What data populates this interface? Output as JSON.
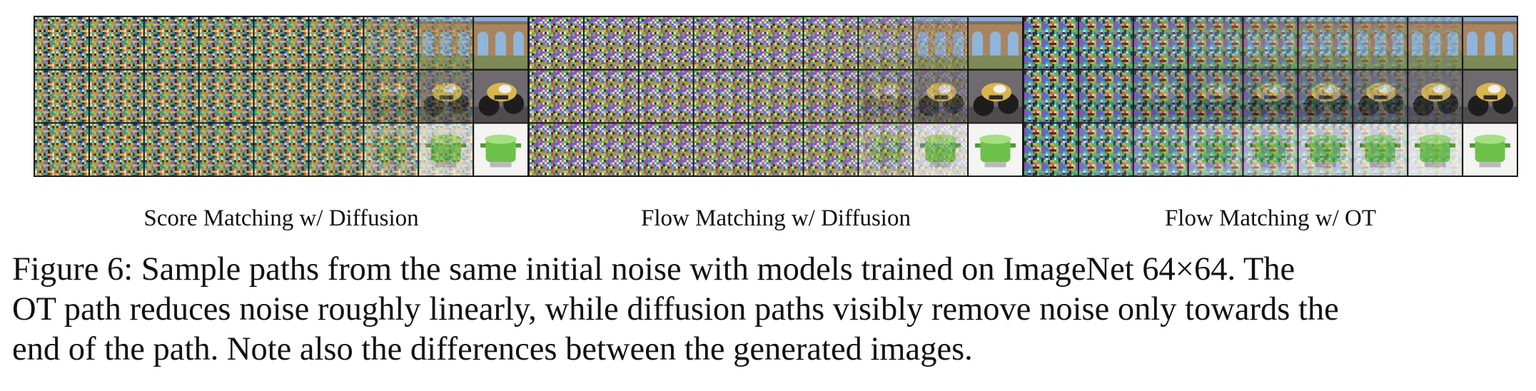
{
  "figure": {
    "panels": [
      {
        "label": "Score Matching w/ Diffusion",
        "noise_levels": [
          1.0,
          1.0,
          1.0,
          1.0,
          1.0,
          0.97,
          0.75,
          0.35,
          0.0
        ]
      },
      {
        "label": "Flow Matching w/ Diffusion",
        "noise_levels": [
          1.0,
          1.0,
          1.0,
          1.0,
          1.0,
          0.95,
          0.72,
          0.3,
          0.0
        ]
      },
      {
        "label": "Flow Matching w/ OT",
        "noise_levels": [
          1.0,
          0.9,
          0.78,
          0.66,
          0.54,
          0.42,
          0.3,
          0.16,
          0.0
        ]
      }
    ],
    "rows": [
      {
        "subject": "aqueduct"
      },
      {
        "subject": "motorcycle"
      },
      {
        "subject": "green-pot"
      }
    ],
    "caption_lines": [
      "Figure 6: Sample paths from the same initial noise with models trained on ImageNet 64×64. The",
      "OT path reduces noise roughly linearly, while diffusion paths visibly remove noise only towards the",
      "end of the path. Note also the differences between the generated images."
    ],
    "colors": {
      "border": "#1a1a1a",
      "text": "#111111",
      "background": "#ffffff"
    }
  }
}
